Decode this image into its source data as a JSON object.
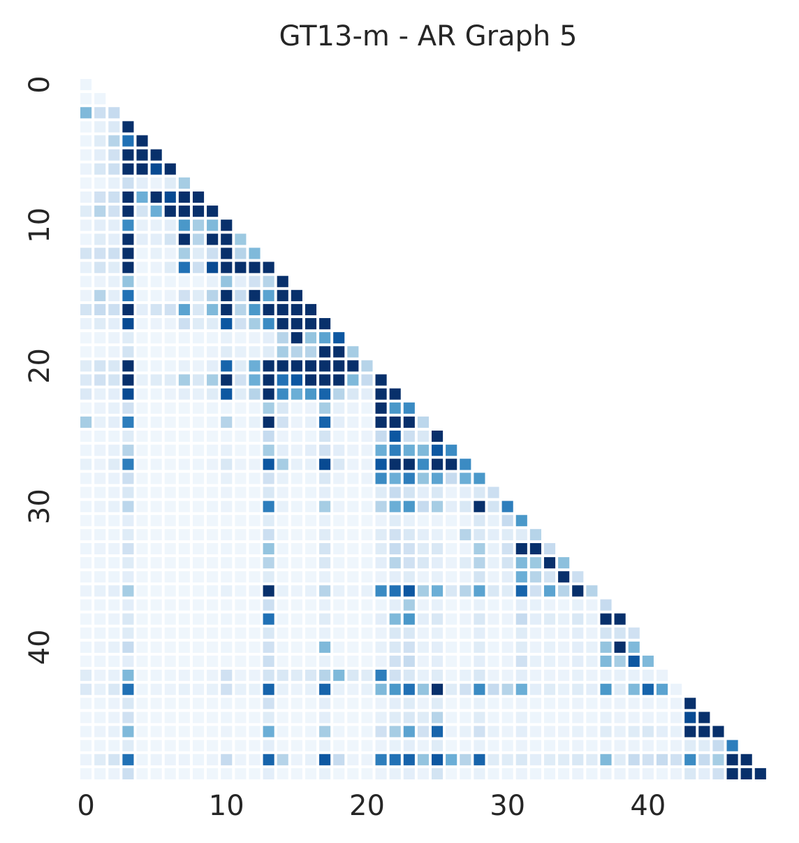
{
  "chart_data": {
    "type": "heatmap",
    "title": "GT13-m - AR Graph 5",
    "xlabel": "",
    "ylabel": "",
    "size": 49,
    "mask": "lower-triangle",
    "colormap": "Blues",
    "value_range": [
      0,
      1
    ],
    "grid": false,
    "legend": "none",
    "x_ticks": [
      0,
      10,
      20,
      30,
      40
    ],
    "y_ticks": [
      0,
      10,
      20,
      30,
      40
    ],
    "x_tick_labels": [
      "0",
      "10",
      "20",
      "30",
      "40"
    ],
    "y_tick_labels": [
      "0",
      "10",
      "20",
      "30",
      "40"
    ],
    "rows": [
      [
        0.05
      ],
      [
        0.04,
        0.05
      ],
      [
        0.45,
        0.22,
        0.25
      ],
      [
        0.04,
        0.08,
        0.14,
        1
      ],
      [
        0.05,
        0.12,
        0.3,
        0.75,
        1
      ],
      [
        0.05,
        0.1,
        0.2,
        1,
        1,
        1
      ],
      [
        0.06,
        0.16,
        0.22,
        1,
        1,
        0.9,
        1
      ],
      [
        0.04,
        0.05,
        0.08,
        0.22,
        0.1,
        0.06,
        0.12,
        0.35
      ],
      [
        0.06,
        0.2,
        0.22,
        1,
        0.5,
        1,
        0.9,
        1,
        1
      ],
      [
        0.12,
        0.3,
        0.2,
        1,
        0.18,
        0.5,
        1,
        1,
        1,
        1
      ],
      [
        0.06,
        0.1,
        0.1,
        0.65,
        0.08,
        0.08,
        0.1,
        0.6,
        0.35,
        0.45,
        1
      ],
      [
        0.05,
        0.12,
        0.1,
        1,
        0.1,
        0.1,
        0.18,
        1,
        0.3,
        1,
        1,
        0.38
      ],
      [
        0.18,
        0.2,
        0.22,
        1,
        0.05,
        0.08,
        0.06,
        0.35,
        0.12,
        0.22,
        1,
        0.3,
        0.45
      ],
      [
        0.08,
        0.18,
        0.12,
        1,
        0.05,
        0.06,
        0.12,
        0.75,
        0.22,
        0.9,
        1,
        1,
        1,
        1
      ],
      [
        0.05,
        0.06,
        0.08,
        0.4,
        0.05,
        0.05,
        0.05,
        0.05,
        0.05,
        0.08,
        0.4,
        0.1,
        0.2,
        0.3,
        1
      ],
      [
        0.06,
        0.3,
        0.1,
        0.75,
        0.05,
        0.05,
        0.06,
        0.2,
        0.12,
        0.3,
        1,
        0.25,
        1,
        0.55,
        1,
        1
      ],
      [
        0.18,
        0.25,
        0.22,
        1,
        0.1,
        0.18,
        0.2,
        0.55,
        0.15,
        0.45,
        1,
        0.3,
        0.6,
        1,
        1,
        1,
        1
      ],
      [
        0.07,
        0.12,
        0.1,
        0.9,
        0.05,
        0.06,
        0.06,
        0.22,
        0.12,
        0.12,
        0.85,
        0.2,
        0.35,
        0.65,
        1,
        1,
        1,
        1
      ],
      [
        0.04,
        0.05,
        0.06,
        0.12,
        0.04,
        0.04,
        0.04,
        0.05,
        0.05,
        0.05,
        0.08,
        0.05,
        0.06,
        0.1,
        0.3,
        1,
        0.4,
        0.55,
        0.85
      ],
      [
        0.04,
        0.05,
        0.06,
        0.18,
        0.04,
        0.04,
        0.04,
        0.05,
        0.05,
        0.06,
        0.12,
        0.08,
        0.08,
        0.12,
        0.35,
        0.3,
        0.3,
        1,
        1,
        0.35
      ],
      [
        0.12,
        0.18,
        0.15,
        1,
        0.05,
        0.05,
        0.05,
        0.08,
        0.06,
        0.1,
        0.8,
        0.12,
        0.5,
        1,
        1,
        1,
        1,
        1,
        1,
        1,
        0.3
      ],
      [
        0.14,
        0.2,
        0.18,
        1,
        0.08,
        0.12,
        0.12,
        0.35,
        0.15,
        0.35,
        1,
        0.2,
        0.5,
        1,
        0.75,
        0.85,
        1,
        1,
        1,
        0.45,
        0.25,
        1
      ],
      [
        0.14,
        0.08,
        0.1,
        0.9,
        0.05,
        0.05,
        0.06,
        0.1,
        0.08,
        0.12,
        0.85,
        0.12,
        0.3,
        1,
        0.65,
        0.5,
        0.6,
        0.8,
        0.3,
        0.15,
        0.1,
        1,
        1
      ],
      [
        0.04,
        0.06,
        0.08,
        0.2,
        0.04,
        0.04,
        0.04,
        0.04,
        0.04,
        0.05,
        0.05,
        0.04,
        0.05,
        0.35,
        0.15,
        0.05,
        0.06,
        0.35,
        0.08,
        0.06,
        0.05,
        1,
        0.6,
        0.65
      ],
      [
        0.35,
        0.08,
        0.1,
        0.7,
        0.04,
        0.05,
        0.04,
        0.04,
        0.04,
        0.05,
        0.3,
        0.05,
        0.08,
        1,
        0.2,
        0.06,
        0.08,
        0.8,
        0.1,
        0.06,
        0.05,
        1,
        1,
        1,
        0.28
      ],
      [
        0.04,
        0.05,
        0.05,
        0.12,
        0.04,
        0.04,
        0.04,
        0.04,
        0.04,
        0.04,
        0.05,
        0.04,
        0.04,
        0.25,
        0.06,
        0.05,
        0.05,
        0.18,
        0.05,
        0.05,
        0.06,
        0.25,
        0.85,
        0.22,
        0.15,
        1
      ],
      [
        0.05,
        0.06,
        0.08,
        0.3,
        0.04,
        0.04,
        0.04,
        0.04,
        0.04,
        0.05,
        0.08,
        0.04,
        0.05,
        0.35,
        0.1,
        0.06,
        0.1,
        0.2,
        0.1,
        0.06,
        0.06,
        0.5,
        0.7,
        0.5,
        0.45,
        0.85,
        0.65
      ],
      [
        0.08,
        0.06,
        0.12,
        0.7,
        0.04,
        0.05,
        0.04,
        0.05,
        0.05,
        0.06,
        0.15,
        0.06,
        0.06,
        0.85,
        0.35,
        0.08,
        0.08,
        0.9,
        0.15,
        0.06,
        0.06,
        0.85,
        1,
        1,
        0.65,
        1,
        1,
        0.65
      ],
      [
        0.05,
        0.06,
        0.07,
        0.22,
        0.04,
        0.04,
        0.04,
        0.04,
        0.04,
        0.04,
        0.08,
        0.04,
        0.05,
        0.2,
        0.08,
        0.05,
        0.05,
        0.15,
        0.06,
        0.05,
        0.06,
        0.65,
        0.5,
        0.7,
        0.4,
        0.55,
        0.25,
        0.5,
        0.6
      ],
      [
        0.04,
        0.05,
        0.06,
        0.15,
        0.04,
        0.04,
        0.04,
        0.04,
        0.04,
        0.04,
        0.06,
        0.04,
        0.04,
        0.15,
        0.06,
        0.04,
        0.05,
        0.1,
        0.05,
        0.04,
        0.04,
        0.12,
        0.25,
        0.18,
        0.1,
        0.15,
        0.06,
        0.1,
        0.15,
        0.22
      ],
      [
        0.05,
        0.06,
        0.08,
        0.28,
        0.04,
        0.04,
        0.04,
        0.04,
        0.04,
        0.05,
        0.06,
        0.04,
        0.05,
        0.7,
        0.08,
        0.05,
        0.05,
        0.35,
        0.06,
        0.05,
        0.05,
        0.3,
        0.5,
        0.6,
        0.25,
        0.35,
        0.1,
        0.15,
        1,
        0.18,
        0.7
      ],
      [
        0.04,
        0.05,
        0.05,
        0.1,
        0.04,
        0.04,
        0.04,
        0.04,
        0.04,
        0.04,
        0.04,
        0.04,
        0.04,
        0.12,
        0.04,
        0.04,
        0.04,
        0.08,
        0.04,
        0.04,
        0.04,
        0.06,
        0.12,
        0.08,
        0.05,
        0.06,
        0.05,
        0.06,
        0.15,
        0.08,
        0.25,
        0.6
      ],
      [
        0.04,
        0.05,
        0.05,
        0.12,
        0.04,
        0.04,
        0.04,
        0.04,
        0.04,
        0.04,
        0.05,
        0.04,
        0.04,
        0.22,
        0.05,
        0.04,
        0.04,
        0.12,
        0.05,
        0.04,
        0.04,
        0.12,
        0.2,
        0.15,
        0.1,
        0.08,
        0.05,
        0.3,
        0.15,
        0.1,
        0.12,
        0.12,
        0.3
      ],
      [
        0.05,
        0.06,
        0.06,
        0.2,
        0.04,
        0.04,
        0.04,
        0.04,
        0.04,
        0.04,
        0.05,
        0.04,
        0.04,
        0.4,
        0.05,
        0.04,
        0.04,
        0.18,
        0.05,
        0.04,
        0.04,
        0.12,
        0.25,
        0.2,
        0.12,
        0.15,
        0.05,
        0.06,
        0.35,
        0.08,
        0.2,
        1,
        1,
        0.25
      ],
      [
        0.04,
        0.05,
        0.05,
        0.12,
        0.04,
        0.04,
        0.04,
        0.04,
        0.04,
        0.04,
        0.05,
        0.04,
        0.04,
        0.3,
        0.05,
        0.04,
        0.04,
        0.15,
        0.05,
        0.04,
        0.05,
        0.1,
        0.3,
        0.2,
        0.15,
        0.1,
        0.06,
        0.12,
        0.3,
        0.08,
        0.18,
        0.45,
        0.38,
        1,
        0.42
      ],
      [
        0.04,
        0.05,
        0.05,
        0.1,
        0.04,
        0.04,
        0.04,
        0.04,
        0.04,
        0.04,
        0.04,
        0.04,
        0.04,
        0.12,
        0.04,
        0.04,
        0.04,
        0.08,
        0.04,
        0.04,
        0.04,
        0.06,
        0.1,
        0.12,
        0.06,
        0.08,
        0.05,
        0.06,
        0.18,
        0.06,
        0.1,
        0.5,
        0.3,
        0.18,
        1,
        0.22
      ],
      [
        0.06,
        0.08,
        0.1,
        0.35,
        0.04,
        0.04,
        0.04,
        0.04,
        0.04,
        0.05,
        0.08,
        0.05,
        0.06,
        1,
        0.08,
        0.06,
        0.08,
        0.3,
        0.08,
        0.06,
        0.08,
        0.65,
        0.75,
        0.85,
        0.35,
        0.5,
        0.15,
        0.3,
        0.55,
        0.15,
        0.12,
        0.8,
        0.2,
        0.55,
        0.3,
        1,
        0.3
      ],
      [
        0.04,
        0.05,
        0.05,
        0.1,
        0.04,
        0.04,
        0.04,
        0.04,
        0.04,
        0.04,
        0.04,
        0.04,
        0.04,
        0.22,
        0.04,
        0.04,
        0.04,
        0.08,
        0.04,
        0.04,
        0.04,
        0.05,
        0.1,
        0.35,
        0.06,
        0.08,
        0.04,
        0.05,
        0.08,
        0.05,
        0.05,
        0.1,
        0.08,
        0.06,
        0.05,
        0.08,
        0.06,
        0.25
      ],
      [
        0.04,
        0.05,
        0.06,
        0.15,
        0.04,
        0.04,
        0.04,
        0.04,
        0.04,
        0.04,
        0.05,
        0.04,
        0.04,
        0.75,
        0.05,
        0.04,
        0.04,
        0.12,
        0.05,
        0.04,
        0.05,
        0.1,
        0.45,
        0.6,
        0.1,
        0.15,
        0.05,
        0.06,
        0.15,
        0.06,
        0.06,
        0.25,
        0.1,
        0.12,
        0.08,
        0.15,
        0.08,
        1,
        1
      ],
      [
        0.04,
        0.05,
        0.05,
        0.12,
        0.04,
        0.04,
        0.04,
        0.04,
        0.04,
        0.04,
        0.04,
        0.04,
        0.04,
        0.15,
        0.04,
        0.04,
        0.04,
        0.08,
        0.04,
        0.04,
        0.04,
        0.06,
        0.15,
        0.15,
        0.06,
        0.08,
        0.04,
        0.05,
        0.1,
        0.05,
        0.05,
        0.12,
        0.06,
        0.06,
        0.06,
        0.1,
        0.06,
        0.18,
        0.18,
        0.2
      ],
      [
        0.05,
        0.06,
        0.08,
        0.25,
        0.04,
        0.04,
        0.04,
        0.04,
        0.04,
        0.04,
        0.05,
        0.04,
        0.04,
        0.2,
        0.05,
        0.04,
        0.04,
        0.45,
        0.05,
        0.04,
        0.04,
        0.08,
        0.15,
        0.2,
        0.08,
        0.1,
        0.05,
        0.05,
        0.12,
        0.05,
        0.06,
        0.12,
        0.06,
        0.08,
        0.06,
        0.1,
        0.08,
        0.4,
        1,
        0.45
      ],
      [
        0.04,
        0.05,
        0.05,
        0.1,
        0.04,
        0.04,
        0.04,
        0.04,
        0.04,
        0.04,
        0.04,
        0.04,
        0.04,
        0.22,
        0.04,
        0.04,
        0.04,
        0.08,
        0.04,
        0.04,
        0.04,
        0.06,
        0.2,
        0.25,
        0.06,
        0.1,
        0.04,
        0.05,
        0.1,
        0.05,
        0.06,
        0.2,
        0.08,
        0.08,
        0.06,
        0.1,
        0.08,
        0.45,
        0.35,
        0.85,
        0.45
      ],
      [
        0.12,
        0.06,
        0.08,
        0.45,
        0.04,
        0.05,
        0.05,
        0.06,
        0.05,
        0.06,
        0.2,
        0.06,
        0.06,
        0.18,
        0.15,
        0.12,
        0.15,
        0.3,
        0.45,
        0.15,
        0.12,
        0.7,
        0.2,
        0.15,
        0.08,
        0.12,
        0.05,
        0.08,
        0.15,
        0.06,
        0.06,
        0.1,
        0.06,
        0.06,
        0.06,
        0.08,
        0.06,
        0.08,
        0.08,
        0.08,
        0.08,
        0.06
      ],
      [
        0.14,
        0.08,
        0.15,
        0.75,
        0.05,
        0.06,
        0.06,
        0.08,
        0.06,
        0.08,
        0.2,
        0.08,
        0.08,
        0.8,
        0.08,
        0.06,
        0.08,
        0.8,
        0.08,
        0.06,
        0.08,
        0.45,
        0.6,
        0.75,
        0.4,
        1,
        0.12,
        0.2,
        0.65,
        0.25,
        0.3,
        0.5,
        0.1,
        0.12,
        0.08,
        0.12,
        0.1,
        0.6,
        0.12,
        0.45,
        0.8,
        0.55,
        0.06
      ],
      [
        0.04,
        0.05,
        0.06,
        0.15,
        0.04,
        0.04,
        0.04,
        0.04,
        0.04,
        0.04,
        0.05,
        0.04,
        0.04,
        0.2,
        0.04,
        0.04,
        0.04,
        0.1,
        0.04,
        0.04,
        0.04,
        0.06,
        0.1,
        0.12,
        0.06,
        0.12,
        0.04,
        0.05,
        0.08,
        0.05,
        0.05,
        0.06,
        0.05,
        0.05,
        0.05,
        0.06,
        0.05,
        0.06,
        0.06,
        0.06,
        0.06,
        0.05,
        0.06,
        1
      ],
      [
        0.04,
        0.05,
        0.06,
        0.2,
        0.04,
        0.04,
        0.04,
        0.04,
        0.04,
        0.04,
        0.05,
        0.04,
        0.04,
        0.12,
        0.04,
        0.04,
        0.04,
        0.1,
        0.04,
        0.04,
        0.04,
        0.08,
        0.12,
        0.15,
        0.12,
        0.3,
        0.05,
        0.05,
        0.12,
        0.05,
        0.05,
        0.08,
        0.05,
        0.05,
        0.05,
        0.06,
        0.05,
        0.08,
        0.06,
        0.06,
        0.06,
        0.05,
        0.06,
        0.9,
        1
      ],
      [
        0.05,
        0.06,
        0.08,
        0.45,
        0.04,
        0.04,
        0.04,
        0.04,
        0.04,
        0.04,
        0.06,
        0.04,
        0.05,
        0.5,
        0.05,
        0.04,
        0.05,
        0.35,
        0.05,
        0.04,
        0.05,
        0.2,
        0.35,
        0.55,
        0.2,
        0.8,
        0.06,
        0.08,
        0.2,
        0.08,
        0.06,
        0.1,
        0.06,
        0.06,
        0.06,
        0.08,
        0.06,
        0.12,
        0.08,
        0.12,
        0.15,
        0.1,
        0.08,
        1,
        1,
        1
      ],
      [
        0.04,
        0.05,
        0.05,
        0.12,
        0.04,
        0.04,
        0.04,
        0.04,
        0.04,
        0.04,
        0.04,
        0.04,
        0.04,
        0.1,
        0.04,
        0.04,
        0.04,
        0.08,
        0.04,
        0.04,
        0.04,
        0.06,
        0.08,
        0.1,
        0.06,
        0.12,
        0.04,
        0.05,
        0.08,
        0.05,
        0.05,
        0.06,
        0.05,
        0.05,
        0.05,
        0.06,
        0.05,
        0.06,
        0.06,
        0.06,
        0.06,
        0.05,
        0.06,
        0.12,
        0.12,
        0.25,
        0.7
      ],
      [
        0.06,
        0.12,
        0.18,
        0.75,
        0.05,
        0.06,
        0.06,
        0.06,
        0.05,
        0.06,
        0.25,
        0.06,
        0.06,
        0.8,
        0.3,
        0.06,
        0.08,
        0.85,
        0.25,
        0.06,
        0.06,
        0.7,
        0.75,
        0.8,
        0.4,
        0.85,
        0.5,
        0.3,
        0.8,
        0.12,
        0.12,
        0.15,
        0.1,
        0.12,
        0.12,
        0.15,
        0.12,
        0.45,
        0.12,
        0.25,
        0.2,
        0.25,
        0.2,
        0.65,
        0.25,
        0.35,
        1,
        1
      ],
      [
        0.04,
        0.05,
        0.06,
        0.22,
        0.04,
        0.04,
        0.04,
        0.04,
        0.04,
        0.04,
        0.05,
        0.04,
        0.04,
        0.1,
        0.04,
        0.04,
        0.04,
        0.08,
        0.04,
        0.04,
        0.04,
        0.06,
        0.08,
        0.1,
        0.06,
        0.18,
        0.04,
        0.05,
        0.08,
        0.05,
        0.05,
        0.06,
        0.05,
        0.05,
        0.05,
        0.06,
        0.05,
        0.06,
        0.06,
        0.06,
        0.06,
        0.05,
        0.06,
        0.15,
        0.1,
        0.2,
        1,
        1,
        1
      ]
    ]
  }
}
